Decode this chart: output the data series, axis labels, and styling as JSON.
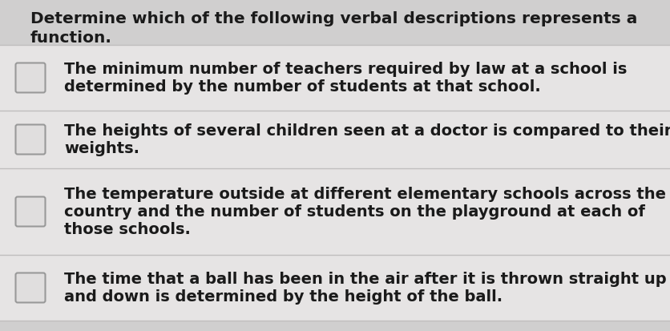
{
  "background_color": "#d0cfcf",
  "row_bg_color": "#e6e4e4",
  "border_color": "#c0bebe",
  "header_text_line1": "Determine which of the following verbal descriptions represents a",
  "header_text_line2": "function.",
  "header_fontsize": 14.5,
  "header_text_color": "#1a1a1a",
  "items": [
    {
      "lines": [
        "The minimum number of teachers required by law at a school is",
        "determined by the number of students at that school."
      ]
    },
    {
      "lines": [
        "The heights of several children seen at a doctor is compared to their",
        "weights."
      ]
    },
    {
      "lines": [
        "The temperature outside at different elementary schools across the",
        "country and the number of students on the playground at each of",
        "those schools."
      ]
    },
    {
      "lines": [
        "The time that a ball has been in the air after it is thrown straight up",
        "and down is determined by the height of the ball."
      ]
    }
  ],
  "item_fontsize": 14.0,
  "item_text_color": "#1a1a1a",
  "checkbox_color": "#e0dede",
  "checkbox_border_color": "#999999",
  "figsize": [
    8.36,
    4.14
  ],
  "dpi": 100
}
